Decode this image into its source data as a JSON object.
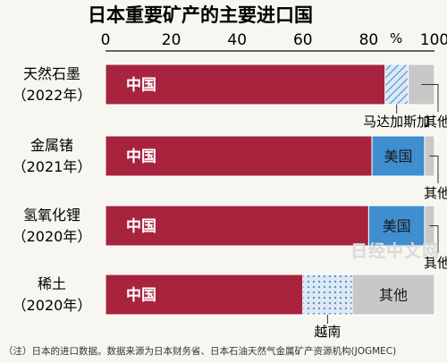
{
  "chart_data": {
    "type": "bar",
    "orientation": "horizontal",
    "stacked": true,
    "title": "日本重要矿产的主要进口国",
    "unit_label": "%",
    "xlim": [
      0,
      100
    ],
    "x_ticks": [
      "0",
      "20",
      "40",
      "60",
      "80",
      "100"
    ],
    "grid": false,
    "rows": [
      {
        "label_lines": [
          "天然石墨",
          "（2022年）"
        ],
        "segments": [
          {
            "name": "中国",
            "value": 85,
            "style": "solid-red",
            "label_pos": "inside"
          },
          {
            "name": "马达加斯加",
            "value": 7,
            "style": "hatch-blue",
            "label_pos": "below"
          },
          {
            "name": "其他",
            "value": 8,
            "style": "solid-gray",
            "label_pos": "right"
          }
        ]
      },
      {
        "label_lines": [
          "金属锗",
          "（2021年）"
        ],
        "segments": [
          {
            "name": "中国",
            "value": 81,
            "style": "solid-red",
            "label_pos": "inside"
          },
          {
            "name": "美国",
            "value": 16,
            "style": "solid-blue",
            "label_pos": "inside"
          },
          {
            "name": "其他",
            "value": 3,
            "style": "solid-gray",
            "label_pos": "right"
          }
        ]
      },
      {
        "label_lines": [
          "氢氧化锂",
          "（2020年）"
        ],
        "segments": [
          {
            "name": "中国",
            "value": 80,
            "style": "solid-red",
            "label_pos": "inside"
          },
          {
            "name": "美国",
            "value": 17,
            "style": "solid-blue",
            "label_pos": "inside"
          },
          {
            "name": "其他",
            "value": 3,
            "style": "solid-gray",
            "label_pos": "right"
          }
        ]
      },
      {
        "label_lines": [
          "稀土",
          "（2020年）"
        ],
        "segments": [
          {
            "name": "中国",
            "value": 60,
            "style": "solid-red",
            "label_pos": "inside"
          },
          {
            "name": "越南",
            "value": 15,
            "style": "dots-blue",
            "label_pos": "below"
          },
          {
            "name": "其他",
            "value": 25,
            "style": "solid-gray",
            "label_pos": "inside"
          }
        ]
      }
    ]
  },
  "colors": {
    "solid-red": "#a8243e",
    "solid-blue": "#3f8fd0",
    "solid-gray": "#c8c8c8",
    "hatch-blue": "#3f8fd0",
    "dots-blue": "#3f8fd0",
    "pattern-bg": "#dde8f3"
  },
  "watermark": "日经中文网",
  "note": "（注）日本的进口数据。数据来源为日本财务省、日本石油天然气金属矿产资源机构(JOGMEC)"
}
